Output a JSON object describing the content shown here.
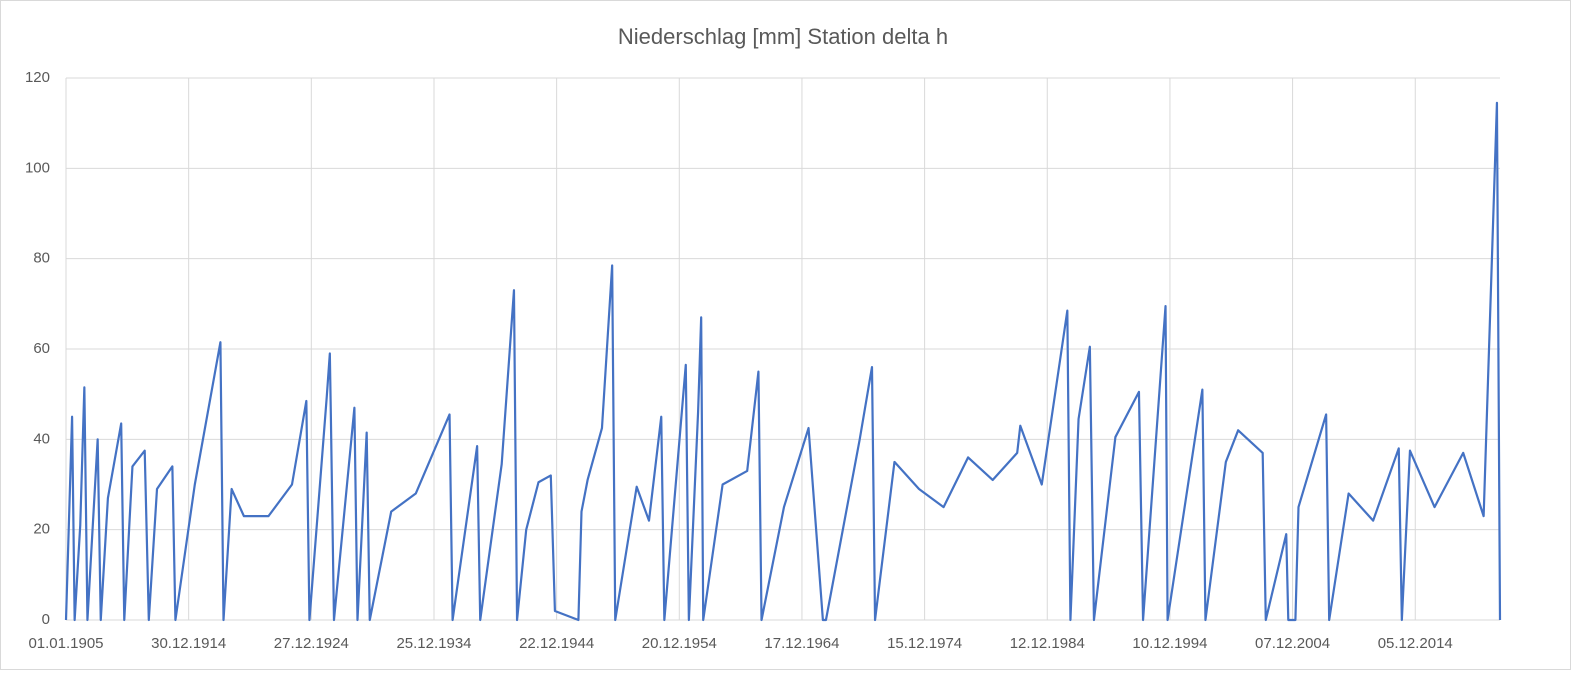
{
  "chart_data": {
    "type": "line",
    "title": "Niederschlag [mm] Station delta h",
    "color": "#4472c4",
    "grid": true,
    "xlim": [
      "01.01.1905",
      "31.10.2021"
    ],
    "xticks": [
      "01.01.1905",
      "30.12.1914",
      "27.12.1924",
      "25.12.1934",
      "22.12.1944",
      "20.12.1954",
      "17.12.1964",
      "15.12.1974",
      "12.12.1984",
      "10.12.1994",
      "07.12.2004",
      "05.12.2014"
    ],
    "ylim": [
      0,
      120
    ],
    "yticks": [
      0,
      20,
      40,
      60,
      80,
      100,
      120
    ],
    "x": [
      "01.01.1905",
      "01.07.1905",
      "15.09.1905",
      "01.03.1906",
      "01.07.1906",
      "01.10.1906",
      "01.08.1907",
      "01.11.1907",
      "01.06.1908",
      "01.07.1909",
      "01.10.1909",
      "01.06.1910",
      "01.06.1911",
      "01.10.1911",
      "01.06.1912",
      "01.09.1913",
      "01.12.1913",
      "01.07.1915",
      "01.08.1917",
      "01.11.1917",
      "01.07.1918",
      "01.07.1919",
      "01.07.1921",
      "01.06.1923",
      "01.08.1924",
      "01.11.1924",
      "01.04.1926",
      "01.07.1926",
      "01.08.1926",
      "01.11.1926",
      "01.07.1928",
      "01.10.1928",
      "01.07.1929",
      "01.10.1929",
      "01.07.1931",
      "01.07.1933",
      "01.04.1936",
      "01.07.1936",
      "01.07.1938",
      "01.10.1938",
      "01.07.1940",
      "01.07.1941",
      "01.10.1941",
      "01.07.1942",
      "01.07.1943",
      "01.07.1944",
      "01.11.1944",
      "01.10.1946",
      "01.01.1947",
      "01.07.1947",
      "01.09.1948",
      "01.07.1949",
      "01.10.1949",
      "01.07.1951",
      "01.07.1952",
      "01.07.1953",
      "01.10.1953",
      "01.07.1955",
      "01.10.1955",
      "01.07.1956",
      "01.10.1956",
      "01.12.1956",
      "01.07.1958",
      "01.07.1960",
      "01.06.1961",
      "01.09.1961",
      "01.07.1963",
      "01.07.1965",
      "01.09.1966",
      "01.12.1966",
      "01.09.1969",
      "01.09.1970",
      "01.12.1970",
      "01.07.1972",
      "01.07.1974",
      "01.07.1976",
      "01.07.1978",
      "01.07.1980",
      "01.07.1982",
      "01.10.1982",
      "01.07.1984",
      "01.08.1986",
      "01.11.1986",
      "01.07.1987",
      "01.06.1988",
      "01.10.1988",
      "01.07.1990",
      "01.06.1992",
      "01.10.1992",
      "01.08.1994",
      "01.10.1994",
      "01.08.1997",
      "01.11.1997",
      "01.07.1999",
      "01.07.2000",
      "01.07.2002",
      "01.10.2002",
      "01.06.2004",
      "01.08.2004",
      "01.03.2005",
      "01.06.2005",
      "01.09.2007",
      "01.12.2007",
      "01.07.2009",
      "01.07.2011",
      "01.08.2013",
      "01.11.2013",
      "01.07.2014",
      "01.07.2016",
      "01.11.2018",
      "01.07.2020",
      "01.08.2021",
      "31.10.2021"
    ],
    "series": [
      {
        "name": "Niederschlag",
        "color": "#4472c4",
        "values": [
          0,
          45,
          0,
          21,
          51.5,
          0,
          40,
          0,
          27,
          43.5,
          0,
          34,
          37.5,
          0,
          29,
          34,
          0,
          30,
          61.5,
          0,
          29,
          23,
          23,
          30,
          48.5,
          0,
          49.5,
          59,
          45,
          0,
          47,
          0,
          41.5,
          0,
          24,
          28,
          45.5,
          0,
          38.5,
          0,
          34.5,
          73,
          0,
          20,
          30.5,
          32,
          2,
          0,
          24,
          31,
          42.5,
          78.5,
          0,
          29.5,
          22,
          45,
          0,
          56.5,
          0,
          46,
          67,
          0,
          30,
          33,
          55,
          0,
          25,
          42.5,
          0,
          0,
          40,
          56,
          0,
          35,
          29,
          25,
          36,
          31,
          37,
          43,
          30,
          68.5,
          0,
          44.5,
          60.5,
          0,
          40.5,
          50.5,
          0,
          69.5,
          0,
          51,
          0,
          35,
          42,
          37,
          0,
          19,
          0,
          0,
          25,
          45.5,
          0,
          28,
          22,
          38,
          0,
          37.5,
          25,
          37,
          23,
          114.5,
          0
        ]
      }
    ]
  }
}
